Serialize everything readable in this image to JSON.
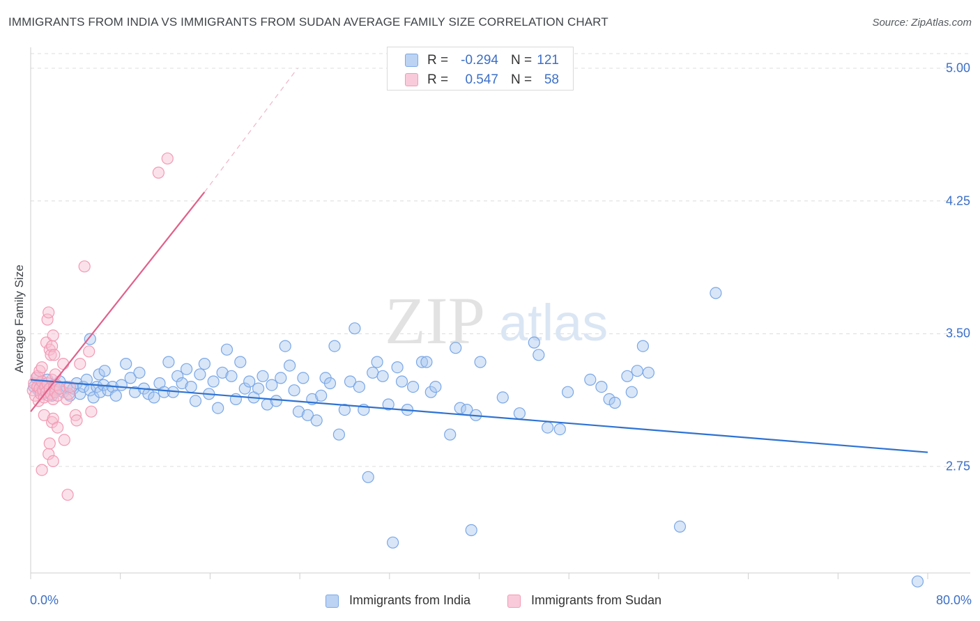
{
  "colors": {
    "india": "#7aa7e6",
    "india_fill": "#a9c8f0",
    "india_line": "#2e72d2",
    "sudan": "#f29ab5",
    "sudan_fill": "#f7bfd1",
    "sudan_line": "#e0608a",
    "grid": "#dcdcdc",
    "axis_text": "#3b6fc7",
    "watermark": "#e1e1e1"
  },
  "stats": {
    "india": {
      "r_label": "R =",
      "r_value": "-0.294",
      "n_label": "N =",
      "n_value": "121"
    },
    "sudan": {
      "r_label": "R =",
      "r_value": "0.547",
      "n_label": "N =",
      "n_value": "58"
    }
  },
  "watermark": {
    "zip": "ZIP",
    "atlas": "atlas"
  },
  "chart_data": {
    "type": "scatter",
    "title": "IMMIGRANTS FROM INDIA VS IMMIGRANTS FROM SUDAN AVERAGE FAMILY SIZE CORRELATION CHART",
    "source": "Source: ZipAtlas.com",
    "xlabel": "",
    "ylabel": "Average Family Size",
    "xlim": [
      0,
      80
    ],
    "ylim": [
      2.05,
      5.1
    ],
    "x_tick_labels": {
      "min": "0.0%",
      "max": "80.0%"
    },
    "y_ticks": [
      {
        "value": 5.0,
        "label": "5.00"
      },
      {
        "value": 4.25,
        "label": "4.25"
      },
      {
        "value": 3.5,
        "label": "3.50"
      },
      {
        "value": 2.75,
        "label": "2.75"
      }
    ],
    "legend": [
      "Immigrants from India",
      "Immigrants from Sudan"
    ],
    "series": [
      {
        "name": "Immigrants from India",
        "trend": {
          "x0": 0,
          "y0": 3.24,
          "x1": 80,
          "y1": 2.83
        },
        "points": [
          [
            0.3,
            3.2
          ],
          [
            0.5,
            3.25
          ],
          [
            0.7,
            3.18
          ],
          [
            0.9,
            3.22
          ],
          [
            1.1,
            3.16
          ],
          [
            1.3,
            3.2
          ],
          [
            1.5,
            3.24
          ],
          [
            1.7,
            3.19
          ],
          [
            1.9,
            3.15
          ],
          [
            2.1,
            3.21
          ],
          [
            2.3,
            3.18
          ],
          [
            2.6,
            3.23
          ],
          [
            2.9,
            3.17
          ],
          [
            3.2,
            3.2
          ],
          [
            3.5,
            3.15
          ],
          [
            3.8,
            3.19
          ],
          [
            4.1,
            3.22
          ],
          [
            4.4,
            3.16
          ],
          [
            4.7,
            3.2
          ],
          [
            5.0,
            3.24
          ],
          [
            5.3,
            3.18
          ],
          [
            5.6,
            3.14
          ],
          [
            5.9,
            3.2
          ],
          [
            6.2,
            3.17
          ],
          [
            6.5,
            3.21
          ],
          [
            5.3,
            3.47
          ],
          [
            6.1,
            3.27
          ],
          [
            6.6,
            3.29
          ],
          [
            6.9,
            3.18
          ],
          [
            7.3,
            3.2
          ],
          [
            7.6,
            3.15
          ],
          [
            8.1,
            3.21
          ],
          [
            8.5,
            3.33
          ],
          [
            8.9,
            3.25
          ],
          [
            9.3,
            3.17
          ],
          [
            9.7,
            3.28
          ],
          [
            10.1,
            3.19
          ],
          [
            10.5,
            3.16
          ],
          [
            11.0,
            3.14
          ],
          [
            11.5,
            3.22
          ],
          [
            11.9,
            3.17
          ],
          [
            12.3,
            3.34
          ],
          [
            12.7,
            3.17
          ],
          [
            13.1,
            3.26
          ],
          [
            13.5,
            3.22
          ],
          [
            13.9,
            3.3
          ],
          [
            14.3,
            3.2
          ],
          [
            14.7,
            3.12
          ],
          [
            15.1,
            3.27
          ],
          [
            15.5,
            3.33
          ],
          [
            15.9,
            3.16
          ],
          [
            16.3,
            3.23
          ],
          [
            16.7,
            3.08
          ],
          [
            17.1,
            3.28
          ],
          [
            17.5,
            3.41
          ],
          [
            17.9,
            3.26
          ],
          [
            18.3,
            3.13
          ],
          [
            18.7,
            3.34
          ],
          [
            19.1,
            3.19
          ],
          [
            19.5,
            3.23
          ],
          [
            19.9,
            3.14
          ],
          [
            20.3,
            3.19
          ],
          [
            20.7,
            3.26
          ],
          [
            21.1,
            3.1
          ],
          [
            21.5,
            3.21
          ],
          [
            21.9,
            3.12
          ],
          [
            22.3,
            3.25
          ],
          [
            22.7,
            3.43
          ],
          [
            23.1,
            3.32
          ],
          [
            23.5,
            3.18
          ],
          [
            23.9,
            3.06
          ],
          [
            24.3,
            3.25
          ],
          [
            24.7,
            3.04
          ],
          [
            25.1,
            3.13
          ],
          [
            25.5,
            3.01
          ],
          [
            25.9,
            3.15
          ],
          [
            26.3,
            3.25
          ],
          [
            26.7,
            3.22
          ],
          [
            27.1,
            3.43
          ],
          [
            27.5,
            2.93
          ],
          [
            28.0,
            3.07
          ],
          [
            28.5,
            3.23
          ],
          [
            28.9,
            3.53
          ],
          [
            29.3,
            3.2
          ],
          [
            29.7,
            3.07
          ],
          [
            30.1,
            2.69
          ],
          [
            30.5,
            3.28
          ],
          [
            30.9,
            3.34
          ],
          [
            31.4,
            3.26
          ],
          [
            31.9,
            3.1
          ],
          [
            32.3,
            2.32
          ],
          [
            32.7,
            3.31
          ],
          [
            33.1,
            3.23
          ],
          [
            33.6,
            3.07
          ],
          [
            34.1,
            3.2
          ],
          [
            34.9,
            3.34
          ],
          [
            35.3,
            3.34
          ],
          [
            35.7,
            3.17
          ],
          [
            36.1,
            3.2
          ],
          [
            37.4,
            2.93
          ],
          [
            37.9,
            3.42
          ],
          [
            38.3,
            3.08
          ],
          [
            38.9,
            3.07
          ],
          [
            39.3,
            2.39
          ],
          [
            39.7,
            3.04
          ],
          [
            40.1,
            3.34
          ],
          [
            42.1,
            3.14
          ],
          [
            43.6,
            3.05
          ],
          [
            44.9,
            3.45
          ],
          [
            45.3,
            3.38
          ],
          [
            46.1,
            2.97
          ],
          [
            47.2,
            2.96
          ],
          [
            47.9,
            3.17
          ],
          [
            49.9,
            3.24
          ],
          [
            50.9,
            3.2
          ],
          [
            51.6,
            3.13
          ],
          [
            52.1,
            3.11
          ],
          [
            53.2,
            3.26
          ],
          [
            53.6,
            3.17
          ],
          [
            54.1,
            3.29
          ],
          [
            54.6,
            3.43
          ],
          [
            55.1,
            3.28
          ],
          [
            57.9,
            2.41
          ],
          [
            61.1,
            3.73
          ],
          [
            79.1,
            2.1
          ]
        ]
      },
      {
        "name": "Immigrants from Sudan",
        "trend": {
          "x0": 0,
          "y0": 3.06,
          "x1": 15.5,
          "y1": 4.3
        },
        "trend_ext": {
          "x0": 15.5,
          "y0": 4.3,
          "x1": 23.8,
          "y1": 5.0
        },
        "points": [
          [
            0.2,
            3.18
          ],
          [
            0.3,
            3.22
          ],
          [
            0.4,
            3.15
          ],
          [
            0.5,
            3.25
          ],
          [
            0.6,
            3.2
          ],
          [
            0.7,
            3.12
          ],
          [
            0.8,
            3.19
          ],
          [
            0.9,
            3.16
          ],
          [
            1.0,
            3.23
          ],
          [
            1.1,
            3.18
          ],
          [
            1.2,
            3.14
          ],
          [
            1.3,
            3.2
          ],
          [
            1.4,
            3.17
          ],
          [
            1.5,
            3.22
          ],
          [
            1.6,
            3.15
          ],
          [
            1.7,
            3.19
          ],
          [
            1.8,
            3.16
          ],
          [
            1.9,
            3.24
          ],
          [
            2.0,
            3.13
          ],
          [
            2.1,
            3.2
          ],
          [
            2.2,
            3.17
          ],
          [
            2.3,
            3.21
          ],
          [
            2.4,
            3.15
          ],
          [
            2.6,
            3.19
          ],
          [
            0.6,
            3.26
          ],
          [
            0.8,
            3.29
          ],
          [
            1.0,
            3.31
          ],
          [
            1.2,
            3.04
          ],
          [
            1.4,
            3.45
          ],
          [
            1.5,
            3.58
          ],
          [
            1.6,
            3.62
          ],
          [
            1.7,
            3.41
          ],
          [
            1.8,
            3.38
          ],
          [
            1.9,
            3.43
          ],
          [
            2.0,
            3.49
          ],
          [
            2.1,
            3.38
          ],
          [
            2.2,
            3.27
          ],
          [
            1.0,
            2.73
          ],
          [
            1.6,
            2.82
          ],
          [
            1.7,
            2.88
          ],
          [
            1.9,
            3.0
          ],
          [
            2.0,
            3.02
          ],
          [
            2.0,
            2.78
          ],
          [
            2.4,
            2.97
          ],
          [
            2.9,
            3.33
          ],
          [
            3.0,
            2.9
          ],
          [
            3.2,
            3.13
          ],
          [
            3.3,
            2.59
          ],
          [
            3.4,
            3.16
          ],
          [
            4.0,
            3.04
          ],
          [
            4.1,
            3.01
          ],
          [
            4.4,
            3.33
          ],
          [
            5.4,
            3.06
          ],
          [
            5.2,
            3.4
          ],
          [
            3.5,
            3.2
          ],
          [
            4.8,
            3.88
          ],
          [
            11.4,
            4.41
          ],
          [
            12.2,
            4.49
          ]
        ]
      }
    ]
  }
}
